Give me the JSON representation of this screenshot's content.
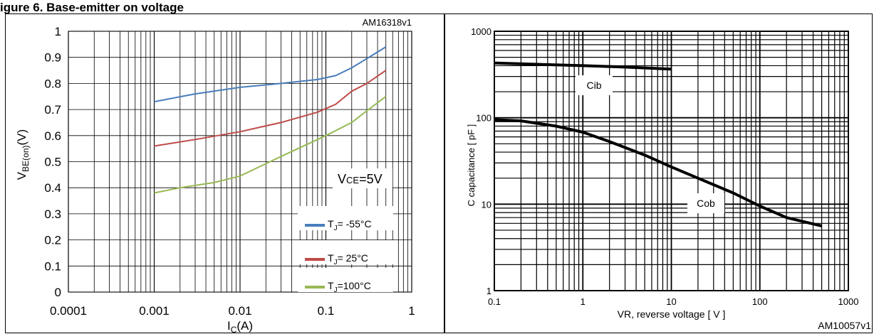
{
  "header": {
    "title": "igure 6. Base-emitter on voltage"
  },
  "chart_data": [
    {
      "type": "line",
      "id_label": "AM16318v1",
      "annotation": "VCE=5V",
      "xscale": "log",
      "xlim": [
        0.0001,
        1
      ],
      "ylim": [
        0,
        1
      ],
      "xlabel": "IC(A)",
      "ylabel": "VBE(on)(V)",
      "xticks": [
        "0.0001",
        "0.001",
        "0.01",
        "0.1",
        "1"
      ],
      "yticks": [
        "0",
        "0.1",
        "0.2",
        "0.3",
        "0.4",
        "0.5",
        "0.6",
        "0.7",
        "0.8",
        "0.9",
        "1"
      ],
      "grid": true,
      "legend_position": "bottom-right",
      "series": [
        {
          "name": "TJ= -55°C",
          "color": "#4a7ebb",
          "x": [
            0.001,
            0.003,
            0.01,
            0.03,
            0.08,
            0.13,
            0.2,
            0.3,
            0.5
          ],
          "y": [
            0.73,
            0.76,
            0.785,
            0.8,
            0.815,
            0.83,
            0.86,
            0.895,
            0.94
          ]
        },
        {
          "name": "TJ= 25°C",
          "color": "#be4b48",
          "x": [
            0.001,
            0.003,
            0.01,
            0.03,
            0.08,
            0.13,
            0.2,
            0.3,
            0.5
          ],
          "y": [
            0.56,
            0.585,
            0.615,
            0.65,
            0.69,
            0.72,
            0.77,
            0.8,
            0.85
          ]
        },
        {
          "name": "TJ=100°C",
          "color": "#98b954",
          "x": [
            0.001,
            0.002,
            0.005,
            0.01,
            0.03,
            0.1,
            0.2,
            0.3,
            0.5
          ],
          "y": [
            0.38,
            0.4,
            0.42,
            0.445,
            0.52,
            0.6,
            0.65,
            0.695,
            0.75
          ]
        }
      ]
    },
    {
      "type": "line",
      "id_label": "AM10057v1",
      "xscale": "log",
      "yscale": "log",
      "xlim": [
        0.1,
        1000
      ],
      "ylim": [
        1,
        1000
      ],
      "xlabel": "VR, reverse voltage  [ V ]",
      "ylabel": "C capacitance  [ pF ]",
      "xticks": [
        "0.1",
        "1",
        "10",
        "100",
        "1000"
      ],
      "yticks": [
        "1",
        "10",
        "100",
        "1000"
      ],
      "grid": true,
      "series": [
        {
          "name": "Cib",
          "color": "#000000",
          "x": [
            0.1,
            0.3,
            1,
            3,
            10
          ],
          "y": [
            430,
            415,
            400,
            385,
            365
          ]
        },
        {
          "name": "Cob",
          "color": "#000000",
          "x": [
            0.1,
            0.2,
            0.5,
            1,
            2,
            5,
            10,
            20,
            50,
            100,
            200,
            500
          ],
          "y": [
            95,
            92,
            80,
            68,
            53,
            37,
            27,
            20,
            13.5,
            9.5,
            7,
            5.6
          ]
        }
      ]
    }
  ]
}
